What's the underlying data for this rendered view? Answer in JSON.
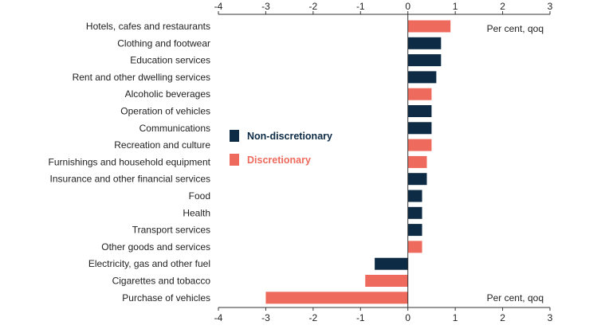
{
  "chart_data": {
    "type": "bar",
    "orientation": "horizontal",
    "title": "",
    "xlim": [
      -4,
      3
    ],
    "x_ticks": [
      -4,
      -3,
      -2,
      -1,
      0,
      1,
      2,
      3
    ],
    "x_tick_labels": [
      "-4",
      "-3",
      "-2",
      "-1",
      "0",
      "1",
      "2",
      "3"
    ],
    "unit_label_top": "Per cent, qoq",
    "unit_label_bottom": "Per cent, qoq",
    "grid": false,
    "legend_position": "center",
    "legend": [
      {
        "name": "Non-discretionary",
        "color": "#0d2b45"
      },
      {
        "name": "Discretionary",
        "color": "#ee6a5d"
      }
    ],
    "categories": [
      "Hotels, cafes and restaurants",
      "Clothing and footwear",
      "Education services",
      "Rent and other dwelling services",
      "Alcoholic beverages",
      "Operation of vehicles",
      "Communications",
      "Recreation and culture",
      "Furnishings and household equipment",
      "Insurance and other financial services",
      "Food",
      "Health",
      "Transport services",
      "Other goods and services",
      "Electricity, gas and other fuel",
      "Cigarettes and tobacco",
      "Purchase of vehicles"
    ],
    "values": [
      0.9,
      0.7,
      0.7,
      0.6,
      0.5,
      0.5,
      0.5,
      0.5,
      0.4,
      0.4,
      0.3,
      0.3,
      0.3,
      0.3,
      -0.7,
      -0.9,
      -3.0
    ],
    "groups": [
      "Discretionary",
      "Non-discretionary",
      "Non-discretionary",
      "Non-discretionary",
      "Discretionary",
      "Non-discretionary",
      "Non-discretionary",
      "Discretionary",
      "Discretionary",
      "Non-discretionary",
      "Non-discretionary",
      "Non-discretionary",
      "Non-discretionary",
      "Discretionary",
      "Non-discretionary",
      "Discretionary",
      "Discretionary"
    ]
  }
}
